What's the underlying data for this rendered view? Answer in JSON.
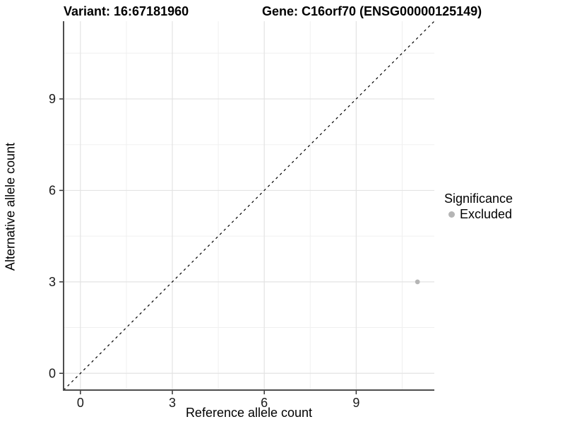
{
  "chart_data": {
    "type": "scatter",
    "title_left": "Variant: 16:67181960",
    "title_right": "Gene: C16orf70 (ENSG00000125149)",
    "xlabel": "Reference allele count",
    "ylabel": "Alternative allele count",
    "xlim": [
      -0.55,
      11.55
    ],
    "ylim": [
      -0.55,
      11.55
    ],
    "x_ticks": [
      0,
      3,
      6,
      9
    ],
    "y_ticks": [
      0,
      3,
      6,
      9
    ],
    "x_minor_ticks": [
      1.5,
      4.5,
      7.5,
      10.5
    ],
    "y_minor_ticks": [
      1.5,
      4.5,
      7.5,
      10.5
    ],
    "grid": true,
    "reference_line": {
      "type": "identity",
      "style": "dashed",
      "color": "#000000"
    },
    "series": [
      {
        "name": "Excluded",
        "color": "#b5b5b5",
        "points": [
          {
            "x": 11,
            "y": 3
          }
        ]
      }
    ],
    "legend": {
      "title": "Significance",
      "position": "right",
      "items": [
        {
          "label": "Excluded",
          "color": "#b5b5b5"
        }
      ]
    },
    "colors": {
      "major_grid": "#e3e3e3",
      "minor_grid": "#f0f0f0",
      "axis_line": "#4d4d4d",
      "tick_mark": "#333333",
      "tick_label": "#1a1a1a"
    }
  }
}
